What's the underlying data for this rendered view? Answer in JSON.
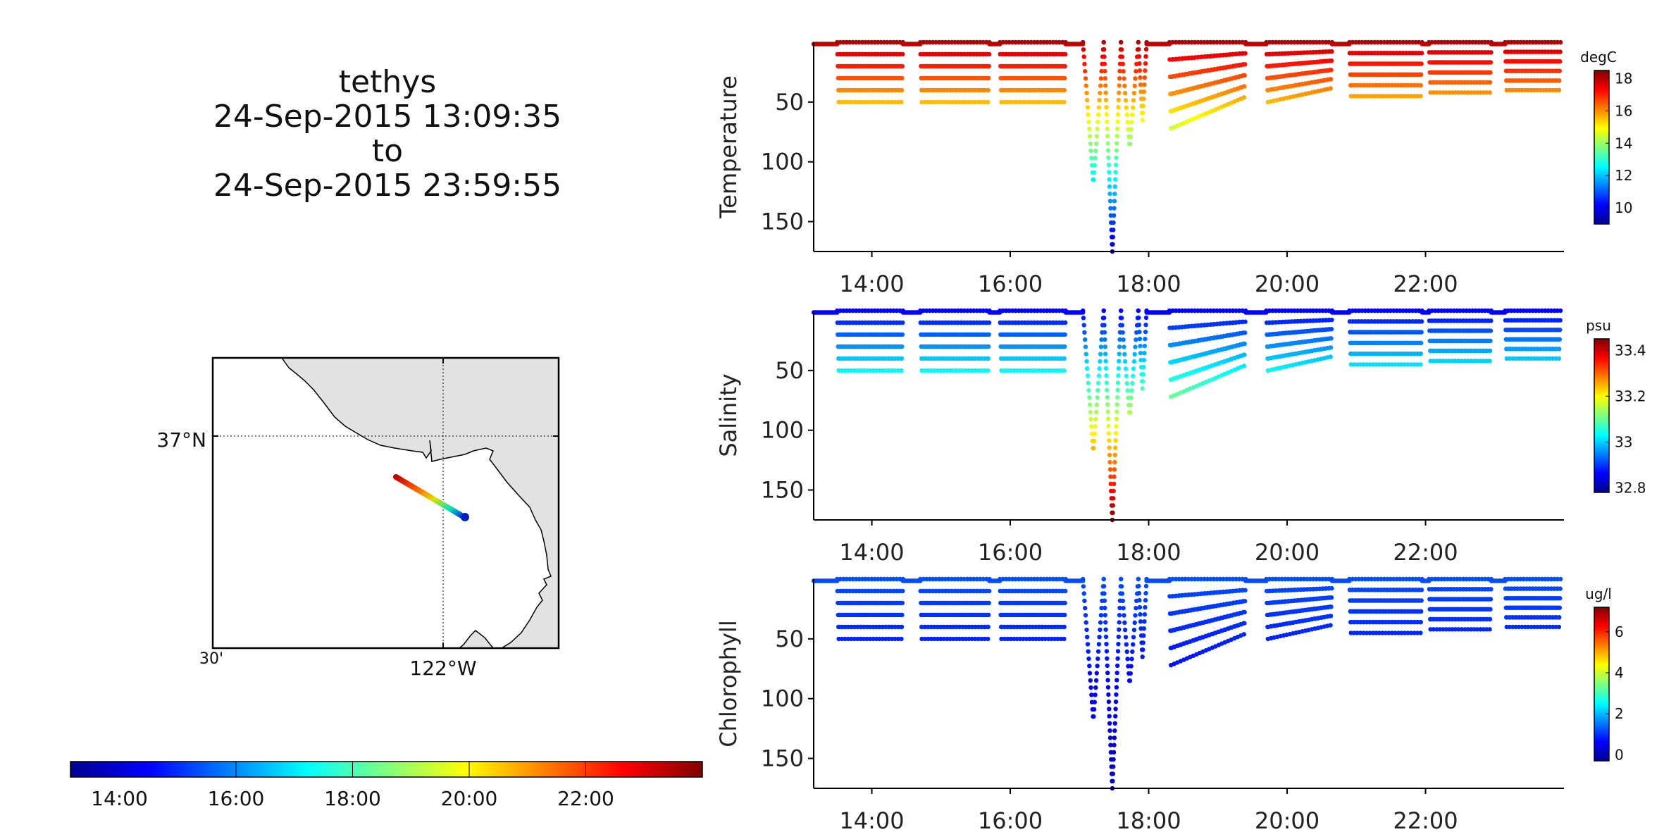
{
  "header": {
    "vehicle": "tethys",
    "start": "24-Sep-2015 13:09:35",
    "separator": "to",
    "end": "24-Sep-2015 23:59:55"
  },
  "map": {
    "lat_label": "37°N",
    "lon_label": "122°W",
    "corner_label": "30'",
    "colorbar_ticks": [
      "14:00",
      "16:00",
      "18:00",
      "20:00",
      "22:00"
    ]
  },
  "chart_data": [
    {
      "type": "scatter",
      "ylabel": "Temperature",
      "unit": "degC",
      "xlim": [
        13.16,
        24.0
      ],
      "ylim": [
        0,
        175
      ],
      "y_inverted": true,
      "xticks": [
        "14:00",
        "16:00",
        "18:00",
        "20:00",
        "22:00"
      ],
      "yticks": [
        50,
        100,
        150
      ],
      "colorbar_ticks": [
        10,
        12,
        14,
        16,
        18
      ],
      "color_range": [
        9,
        18.5
      ],
      "colormap": "jet",
      "trace": {
        "surface_value": 18,
        "bottom_value": 9.5,
        "segments": [
          {
            "x_start": 13.16,
            "x_end": 13.5,
            "type": "surface"
          },
          {
            "x_start": 13.5,
            "x_end": 14.45,
            "type": "yo",
            "depth": 50
          },
          {
            "x_start": 14.45,
            "x_end": 14.7,
            "type": "surface"
          },
          {
            "x_start": 14.7,
            "x_end": 15.7,
            "type": "yo",
            "depth": 50
          },
          {
            "x_start": 15.7,
            "x_end": 15.85,
            "type": "surface"
          },
          {
            "x_start": 15.85,
            "x_end": 16.8,
            "type": "yo",
            "depth": 50
          },
          {
            "x_start": 16.8,
            "x_end": 17.05,
            "type": "surface"
          },
          {
            "x_start": 17.05,
            "x_end": 17.35,
            "type": "dive",
            "depth": 118
          },
          {
            "x_start": 17.35,
            "x_end": 17.6,
            "type": "dive",
            "depth": 175
          },
          {
            "x_start": 17.6,
            "x_end": 17.85,
            "type": "dive",
            "depth": 88
          },
          {
            "x_start": 17.85,
            "x_end": 17.97,
            "type": "dive",
            "depth": 65
          },
          {
            "x_start": 17.97,
            "x_end": 18.3,
            "type": "surface"
          },
          {
            "x_start": 18.3,
            "x_end": 19.4,
            "type": "yo",
            "depth": 72,
            "taper_to": 45
          },
          {
            "x_start": 19.4,
            "x_end": 19.7,
            "type": "surface"
          },
          {
            "x_start": 19.7,
            "x_end": 20.65,
            "type": "yo",
            "depth": 50,
            "taper_to": 38
          },
          {
            "x_start": 20.65,
            "x_end": 20.9,
            "type": "surface"
          },
          {
            "x_start": 20.9,
            "x_end": 21.95,
            "type": "yo",
            "depth": 45
          },
          {
            "x_start": 21.95,
            "x_end": 22.05,
            "type": "surface"
          },
          {
            "x_start": 22.05,
            "x_end": 22.95,
            "type": "yo",
            "depth": 42
          },
          {
            "x_start": 22.95,
            "x_end": 23.15,
            "type": "surface"
          },
          {
            "x_start": 23.15,
            "x_end": 23.95,
            "type": "yo",
            "depth": 40
          }
        ]
      }
    },
    {
      "type": "scatter",
      "ylabel": "Salinity",
      "unit": "psu",
      "xlim": [
        13.16,
        24.0
      ],
      "ylim": [
        0,
        175
      ],
      "y_inverted": true,
      "xticks": [
        "14:00",
        "16:00",
        "18:00",
        "20:00",
        "22:00"
      ],
      "yticks": [
        50,
        100,
        150
      ],
      "colorbar_ticks": [
        32.8,
        33,
        33.2,
        33.4
      ],
      "color_range": [
        32.78,
        33.45
      ],
      "colormap": "jet",
      "trace": {
        "surface_value": 32.86,
        "bottom_value": 33.45,
        "segments": [
          {
            "x_start": 13.16,
            "x_end": 13.5,
            "type": "surface"
          },
          {
            "x_start": 13.5,
            "x_end": 14.45,
            "type": "yo",
            "depth": 50
          },
          {
            "x_start": 14.45,
            "x_end": 14.7,
            "type": "surface"
          },
          {
            "x_start": 14.7,
            "x_end": 15.7,
            "type": "yo",
            "depth": 50
          },
          {
            "x_start": 15.7,
            "x_end": 15.85,
            "type": "surface"
          },
          {
            "x_start": 15.85,
            "x_end": 16.8,
            "type": "yo",
            "depth": 50
          },
          {
            "x_start": 16.8,
            "x_end": 17.05,
            "type": "surface"
          },
          {
            "x_start": 17.05,
            "x_end": 17.35,
            "type": "dive",
            "depth": 118
          },
          {
            "x_start": 17.35,
            "x_end": 17.6,
            "type": "dive",
            "depth": 175
          },
          {
            "x_start": 17.6,
            "x_end": 17.85,
            "type": "dive",
            "depth": 88
          },
          {
            "x_start": 17.85,
            "x_end": 17.97,
            "type": "dive",
            "depth": 65
          },
          {
            "x_start": 17.97,
            "x_end": 18.3,
            "type": "surface"
          },
          {
            "x_start": 18.3,
            "x_end": 19.4,
            "type": "yo",
            "depth": 72,
            "taper_to": 45
          },
          {
            "x_start": 19.4,
            "x_end": 19.7,
            "type": "surface"
          },
          {
            "x_start": 19.7,
            "x_end": 20.65,
            "type": "yo",
            "depth": 50,
            "taper_to": 38
          },
          {
            "x_start": 20.65,
            "x_end": 20.9,
            "type": "surface"
          },
          {
            "x_start": 20.9,
            "x_end": 21.95,
            "type": "yo",
            "depth": 45
          },
          {
            "x_start": 21.95,
            "x_end": 22.05,
            "type": "surface"
          },
          {
            "x_start": 22.05,
            "x_end": 22.95,
            "type": "yo",
            "depth": 42
          },
          {
            "x_start": 22.95,
            "x_end": 23.15,
            "type": "surface"
          },
          {
            "x_start": 23.15,
            "x_end": 23.95,
            "type": "yo",
            "depth": 40
          }
        ]
      }
    },
    {
      "type": "scatter",
      "ylabel": "Chlorophyll",
      "unit": "ug/l",
      "xlim": [
        13.16,
        24.0
      ],
      "ylim": [
        0,
        175
      ],
      "y_inverted": true,
      "xticks": [
        "14:00",
        "16:00",
        "18:00",
        "20:00",
        "22:00"
      ],
      "yticks": [
        50,
        100,
        150
      ],
      "colorbar_ticks": [
        0,
        2,
        4,
        6
      ],
      "color_range": [
        -0.3,
        7.2
      ],
      "colormap": "jet",
      "trace": {
        "surface_value": 1.2,
        "bottom_value": 0.1,
        "segments": [
          {
            "x_start": 13.16,
            "x_end": 13.5,
            "type": "surface"
          },
          {
            "x_start": 13.5,
            "x_end": 14.45,
            "type": "yo",
            "depth": 50
          },
          {
            "x_start": 14.45,
            "x_end": 14.7,
            "type": "surface"
          },
          {
            "x_start": 14.7,
            "x_end": 15.7,
            "type": "yo",
            "depth": 50
          },
          {
            "x_start": 15.7,
            "x_end": 15.85,
            "type": "surface"
          },
          {
            "x_start": 15.85,
            "x_end": 16.8,
            "type": "yo",
            "depth": 50
          },
          {
            "x_start": 16.8,
            "x_end": 17.05,
            "type": "surface"
          },
          {
            "x_start": 17.05,
            "x_end": 17.35,
            "type": "dive",
            "depth": 118
          },
          {
            "x_start": 17.35,
            "x_end": 17.6,
            "type": "dive",
            "depth": 175
          },
          {
            "x_start": 17.6,
            "x_end": 17.85,
            "type": "dive",
            "depth": 88
          },
          {
            "x_start": 17.85,
            "x_end": 17.97,
            "type": "dive",
            "depth": 65
          },
          {
            "x_start": 17.97,
            "x_end": 18.3,
            "type": "surface"
          },
          {
            "x_start": 18.3,
            "x_end": 19.4,
            "type": "yo",
            "depth": 72,
            "taper_to": 45
          },
          {
            "x_start": 19.4,
            "x_end": 19.7,
            "type": "surface"
          },
          {
            "x_start": 19.7,
            "x_end": 20.65,
            "type": "yo",
            "depth": 50,
            "taper_to": 38
          },
          {
            "x_start": 20.65,
            "x_end": 20.9,
            "type": "surface"
          },
          {
            "x_start": 20.9,
            "x_end": 21.95,
            "type": "yo",
            "depth": 45
          },
          {
            "x_start": 21.95,
            "x_end": 22.05,
            "type": "surface"
          },
          {
            "x_start": 22.05,
            "x_end": 22.95,
            "type": "yo",
            "depth": 42
          },
          {
            "x_start": 22.95,
            "x_end": 23.15,
            "type": "surface"
          },
          {
            "x_start": 23.15,
            "x_end": 23.95,
            "type": "yo",
            "depth": 40
          }
        ]
      }
    }
  ]
}
